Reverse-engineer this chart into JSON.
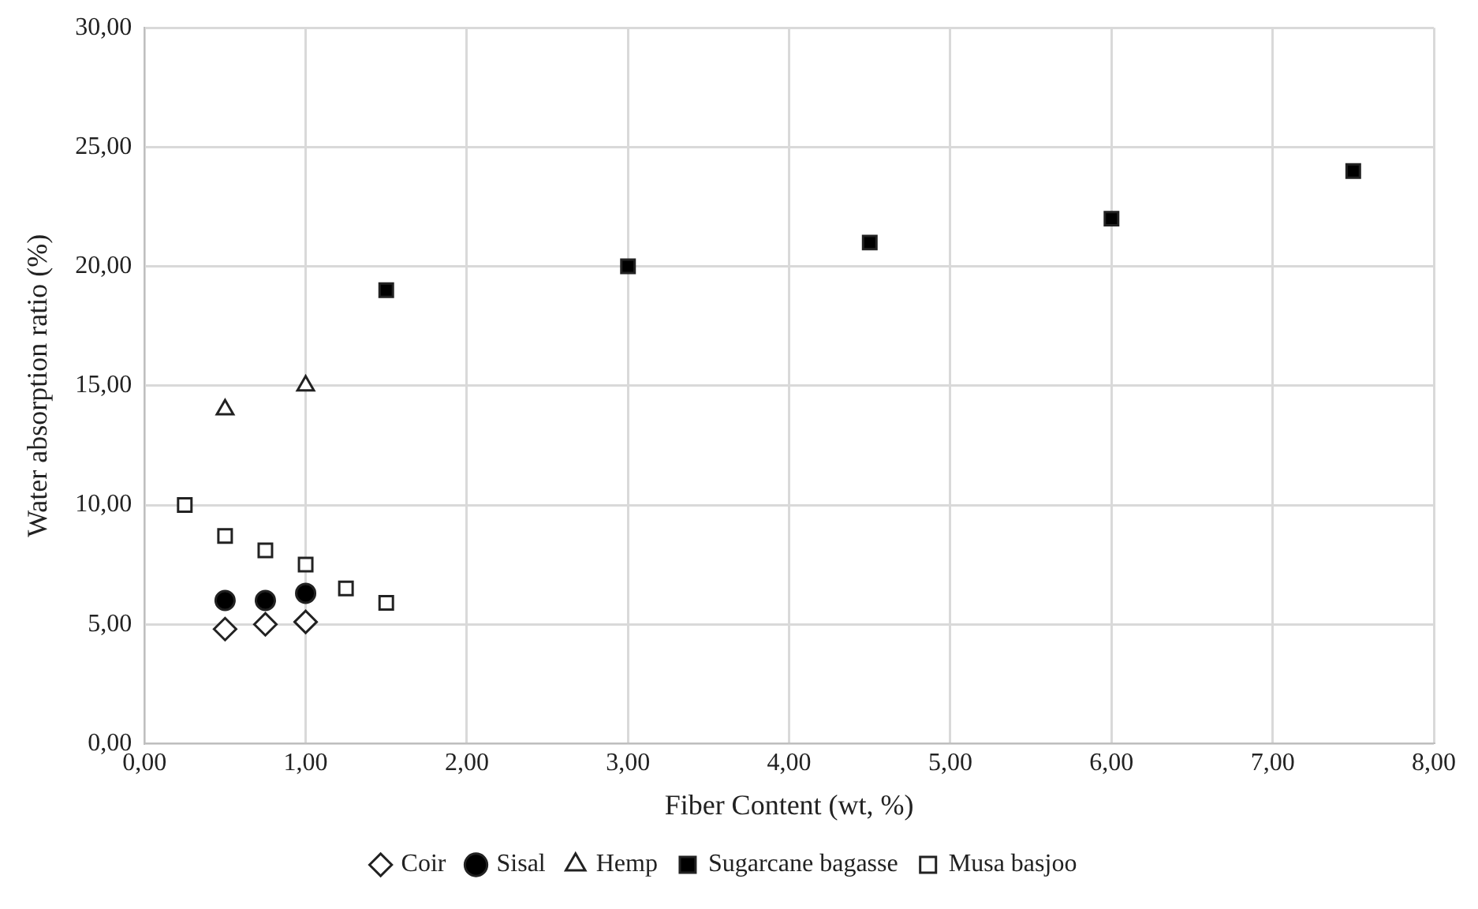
{
  "chart_data": {
    "type": "scatter",
    "xlabel": "Fiber Content (wt, %)",
    "ylabel": "Water absorption ratio (%)",
    "xlim": [
      0,
      8
    ],
    "xticks": [
      {
        "value": 0,
        "label": "0,00"
      },
      {
        "value": 1,
        "label": "1,00"
      },
      {
        "value": 2,
        "label": "2,00"
      },
      {
        "value": 3,
        "label": "3,00"
      },
      {
        "value": 4,
        "label": "4,00"
      },
      {
        "value": 5,
        "label": "5,00"
      },
      {
        "value": 6,
        "label": "6,00"
      },
      {
        "value": 7,
        "label": "7,00"
      },
      {
        "value": 8,
        "label": "8,00"
      }
    ],
    "ylim": [
      0,
      30
    ],
    "yticks": [
      {
        "value": 0,
        "label": "0,00"
      },
      {
        "value": 5,
        "label": "5,00"
      },
      {
        "value": 10,
        "label": "10,00"
      },
      {
        "value": 15,
        "label": "15,00"
      },
      {
        "value": 20,
        "label": "20,00"
      },
      {
        "value": 25,
        "label": "25,00"
      },
      {
        "value": 30,
        "label": "30,00"
      }
    ],
    "grid": true,
    "legend": "bottom",
    "series": [
      {
        "name": "Coir",
        "color": "#ffffff",
        "marker": "diamond",
        "x": [
          0.5,
          0.75,
          1.0
        ],
        "values": [
          4.8,
          5.0,
          5.1
        ]
      },
      {
        "name": "Sisal",
        "color": "#000000",
        "marker": "circle",
        "x": [
          0.5,
          0.75,
          1.0
        ],
        "values": [
          6.0,
          6.0,
          6.3
        ]
      },
      {
        "name": "Hemp",
        "color": "#ffffff",
        "marker": "triangle",
        "x": [
          0.5,
          1.0
        ],
        "values": [
          14.0,
          15.0
        ]
      },
      {
        "name": "Sugarcane bagasse",
        "color": "#000000",
        "marker": "square",
        "x": [
          1.5,
          3.0,
          4.5,
          6.0,
          7.5
        ],
        "values": [
          19,
          20,
          21,
          22,
          24
        ]
      },
      {
        "name": "Musa basjoo",
        "color": "#ffffff",
        "marker": "square",
        "x": [
          0.25,
          0.5,
          0.75,
          1.0,
          1.25,
          1.5
        ],
        "values": [
          10.0,
          8.7,
          8.1,
          7.5,
          6.5,
          5.9
        ]
      }
    ]
  }
}
